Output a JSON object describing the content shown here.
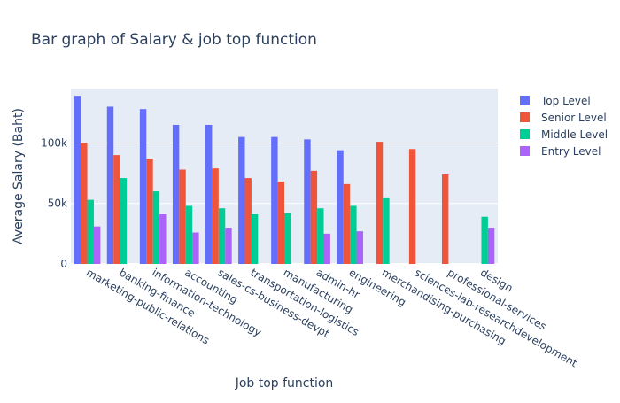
{
  "chart_data": {
    "type": "bar",
    "title": "Bar graph of Salary & job top function",
    "xlabel": "Job top function",
    "ylabel": "Average Salary (Baht)",
    "ylim": [
      0,
      145000
    ],
    "yticks": [
      {
        "value": 0,
        "label": "0"
      },
      {
        "value": 50000,
        "label": "50k"
      },
      {
        "value": 100000,
        "label": "100k"
      }
    ],
    "grid": true,
    "legend_position": "top-right",
    "categories": [
      "marketing-public-relations",
      "banking-finance",
      "information-technology",
      "accounting",
      "sales-cs-business-devpt",
      "transportation-logistics",
      "manufacturing",
      "admin-hr",
      "engineering",
      "merchandising-purchasing",
      "sciences-lab-researchdevelopment",
      "professional-services",
      "design"
    ],
    "series": [
      {
        "name": "Top Level",
        "color": "#636efa",
        "values": [
          139000,
          130000,
          128000,
          115000,
          115000,
          105000,
          105000,
          103000,
          94000,
          null,
          null,
          null,
          null
        ]
      },
      {
        "name": "Senior Level",
        "color": "#ef553b",
        "values": [
          100000,
          90000,
          87000,
          78000,
          79000,
          71000,
          68000,
          77000,
          66000,
          101000,
          95000,
          74000,
          null
        ]
      },
      {
        "name": "Middle Level",
        "color": "#00cc96",
        "values": [
          53000,
          71000,
          60000,
          48000,
          46000,
          41000,
          42000,
          46000,
          48000,
          55000,
          null,
          null,
          39000
        ]
      },
      {
        "name": "Entry Level",
        "color": "#ab63fa",
        "values": [
          31000,
          null,
          41000,
          26000,
          30000,
          null,
          null,
          25000,
          27000,
          null,
          null,
          null,
          30000
        ]
      }
    ]
  }
}
